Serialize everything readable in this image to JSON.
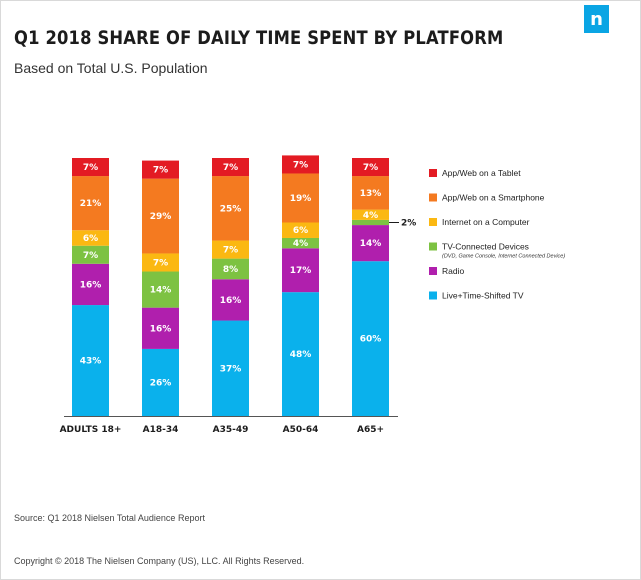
{
  "header": {
    "title": "Q1 2018 SHARE OF DAILY TIME SPENT BY PLATFORM",
    "subtitle": "Based on Total U.S. Population",
    "logo_text": "n"
  },
  "footer": {
    "source": "Source: Q1 2018 Nielsen Total Audience Report",
    "copyright": "Copyright © 2018 The Nielsen Company (US), LLC. All Rights Reserved."
  },
  "chart_data": {
    "type": "bar",
    "stacked": true,
    "value_suffix": "%",
    "categories": [
      "ADULTS 18+",
      "A18-34",
      "A35-49",
      "A50-64",
      "A65+"
    ],
    "ylim": [
      0,
      100
    ],
    "legend_position": "right",
    "series": [
      {
        "name": "Live+Time-Shifted TV",
        "color": "#0ab1ec",
        "values": [
          43,
          26,
          37,
          48,
          60
        ]
      },
      {
        "name": "Radio",
        "color": "#b01fad",
        "values": [
          16,
          16,
          16,
          17,
          14
        ]
      },
      {
        "name": "TV-Connected Devices",
        "sub": "(DVD, Game Console, Internet Connected Device)",
        "color": "#7dc242",
        "values": [
          7,
          14,
          8,
          4,
          2
        ]
      },
      {
        "name": "Internet on a Computer",
        "color": "#fbb812",
        "values": [
          6,
          7,
          7,
          6,
          4
        ]
      },
      {
        "name": "App/Web on a Smartphone",
        "color": "#f47a20",
        "values": [
          21,
          29,
          25,
          19,
          13
        ]
      },
      {
        "name": "App/Web on a Tablet",
        "color": "#e31b23",
        "values": [
          7,
          7,
          7,
          7,
          7
        ]
      }
    ],
    "callouts": [
      {
        "category": "A65+",
        "series": "TV-Connected Devices",
        "text": "2%"
      }
    ]
  }
}
